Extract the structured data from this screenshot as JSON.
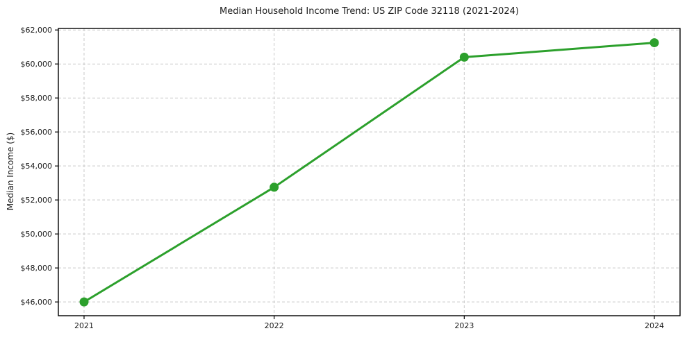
{
  "chart_data": {
    "type": "line",
    "title": "Median Household Income Trend: US ZIP Code 32118 (2021-2024)",
    "xlabel": "",
    "ylabel": "Median Income ($)",
    "x": [
      2021,
      2022,
      2023,
      2024
    ],
    "x_tick_labels": [
      "2021",
      "2022",
      "2023",
      "2024"
    ],
    "series": [
      {
        "name": "Median Household Income",
        "values": [
          46000,
          52750,
          60400,
          61250
        ],
        "color": "#2ca02c"
      }
    ],
    "y_ticks": [
      46000,
      48000,
      50000,
      52000,
      54000,
      56000,
      58000,
      60000,
      62000
    ],
    "y_tick_labels": [
      "$46,000",
      "$48,000",
      "$50,000",
      "$52,000",
      "$54,000",
      "$56,000",
      "$58,000",
      "$60,000",
      "$62,000"
    ],
    "ylim": [
      45190,
      62090
    ],
    "grid": true,
    "grid_style": "dashed",
    "legend_position": "none",
    "colors": {
      "line": "#2ca02c",
      "marker": "#2ca02c",
      "grid": "#c9c9c9",
      "axis_frame": "#000000",
      "text": "#1a1a1a",
      "background": "#ffffff"
    },
    "marker": "circle",
    "line_width": 3,
    "marker_radius": 6.5
  }
}
